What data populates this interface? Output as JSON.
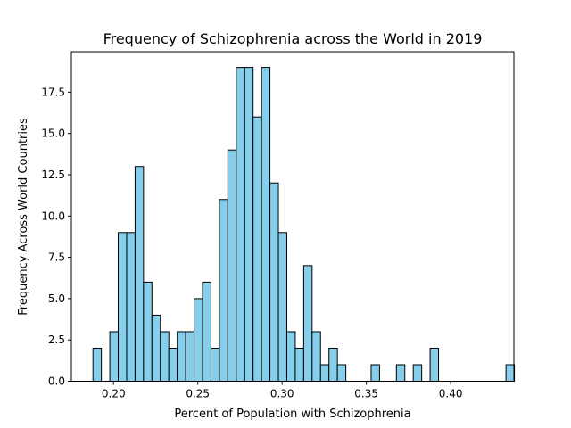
{
  "chart_data": {
    "type": "bar",
    "title": "Frequency of Schizophrenia across the World in 2019",
    "xlabel": "Percent of Population with Schizophrenia",
    "ylabel": "Frequency Across World Countries",
    "bar_color": "#87CEEB",
    "edge_color": "#000000",
    "xlim": [
      0.175,
      0.4375
    ],
    "ylim": [
      0,
      19.95
    ],
    "xticks": [
      {
        "value": 0.2,
        "label": "0.20"
      },
      {
        "value": 0.25,
        "label": "0.25"
      },
      {
        "value": 0.3,
        "label": "0.30"
      },
      {
        "value": 0.35,
        "label": "0.35"
      },
      {
        "value": 0.4,
        "label": "0.40"
      }
    ],
    "yticks": [
      {
        "value": 0.0,
        "label": "0.0"
      },
      {
        "value": 2.5,
        "label": "2.5"
      },
      {
        "value": 5.0,
        "label": "5.0"
      },
      {
        "value": 7.5,
        "label": "7.5"
      },
      {
        "value": 10.0,
        "label": "10.0"
      },
      {
        "value": 12.5,
        "label": "12.5"
      },
      {
        "value": 15.0,
        "label": "15.0"
      },
      {
        "value": 17.5,
        "label": "17.5"
      }
    ],
    "bin_start": 0.1878,
    "bin_width": 0.005,
    "values": [
      2,
      0,
      3,
      9,
      9,
      13,
      6,
      4,
      3,
      2,
      3,
      3,
      5,
      6,
      2,
      11,
      14,
      19,
      19,
      16,
      19,
      12,
      9,
      3,
      2,
      7,
      3,
      1,
      2,
      1,
      0,
      0,
      0,
      1,
      0,
      0,
      1,
      0,
      1,
      0,
      2,
      0,
      0,
      0,
      0,
      0,
      0,
      0,
      0,
      1
    ]
  }
}
